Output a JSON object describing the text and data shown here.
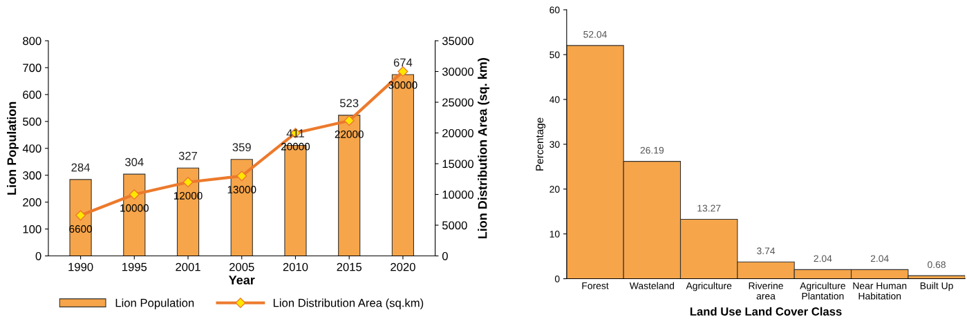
{
  "chart_data": [
    {
      "type": "bar",
      "categories": [
        "1990",
        "1995",
        "2001",
        "2005",
        "2010",
        "2015",
        "2020"
      ],
      "xlabel": "Year",
      "ylabel": "Lion Population",
      "y2label": "Lion Distribution Area (sq. km)",
      "ylim": [
        0,
        800
      ],
      "yticks": [
        0,
        100,
        200,
        300,
        400,
        500,
        600,
        700,
        800
      ],
      "y2lim": [
        0,
        35000
      ],
      "y2ticks": [
        0,
        5000,
        10000,
        15000,
        20000,
        25000,
        30000,
        35000
      ],
      "data_labels": true,
      "legend": "bottom",
      "grid": false,
      "series": [
        {
          "name": "Lion Population",
          "color": "#f6a54a",
          "values": [
            284,
            304,
            327,
            359,
            411,
            523,
            674
          ]
        },
        {
          "name": "Lion Distribution Area (sq.km)",
          "type": "line",
          "axis": "y2",
          "color": "#ec7a2c",
          "marker": "diamond",
          "line_style": "solid",
          "values": [
            6600,
            10000,
            12000,
            13000,
            20000,
            22000,
            30000
          ]
        }
      ]
    },
    {
      "type": "bar",
      "categories": [
        "Forest",
        "Wasteland",
        "Agriculture",
        "Riverine\narea",
        "Agriculture\nPlantation",
        "Near Human\nHabitation",
        "Built Up"
      ],
      "xlabel": "Land Use Land Cover Class",
      "ylabel": "Percentage",
      "ylim": [
        0,
        60
      ],
      "yticks": [
        0,
        10,
        20,
        30,
        40,
        50,
        60
      ],
      "data_labels": true,
      "grid": false,
      "series": [
        {
          "color": "#f6a54a",
          "values": [
            52.04,
            26.19,
            13.27,
            3.74,
            2.04,
            2.04,
            0.68
          ]
        }
      ]
    }
  ]
}
